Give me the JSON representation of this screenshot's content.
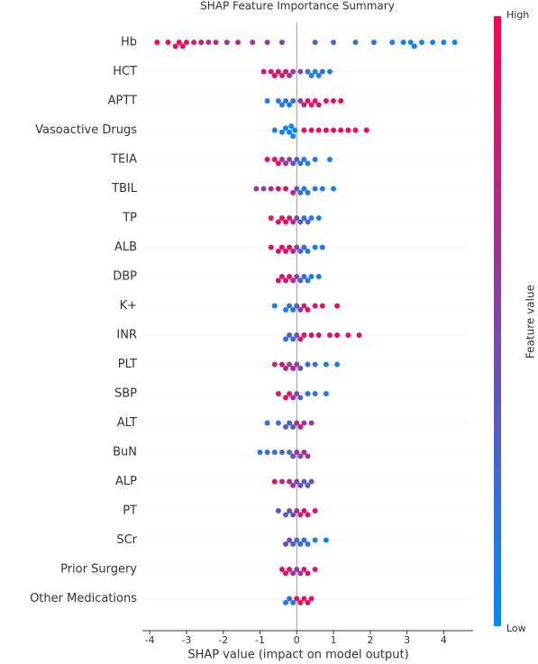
{
  "chart_data": {
    "type": "beeswarm",
    "title": "SHAP Feature Importance Summary",
    "xlabel": "SHAP value (impact on model output)",
    "xlim": [
      -4.2,
      4.8
    ],
    "xticks": [
      -4,
      -3,
      -2,
      -1,
      0,
      1,
      2,
      3,
      4
    ],
    "colorbar": {
      "label": "Feature value",
      "high": "High",
      "low": "Low",
      "colors": [
        "#008bfb",
        "#ff0052"
      ]
    },
    "features": [
      {
        "name": "Hb",
        "values": [
          -3.8,
          -3.5,
          -3.3,
          -3.2,
          -3.1,
          -3.0,
          -2.8,
          -2.6,
          -2.4,
          -2.2,
          -1.9,
          -1.6,
          -1.2,
          -0.8,
          -0.4,
          0.5,
          1.0,
          1.6,
          2.1,
          2.6,
          2.9,
          3.1,
          3.2,
          3.4,
          3.7,
          4.0,
          4.3
        ],
        "feature_values": [
          0.95,
          0.9,
          0.85,
          0.95,
          0.9,
          0.88,
          0.8,
          0.85,
          0.7,
          0.75,
          0.65,
          0.7,
          0.6,
          0.55,
          0.5,
          0.3,
          0.25,
          0.2,
          0.15,
          0.1,
          0.1,
          0.05,
          0.08,
          0.05,
          0.1,
          0.05,
          0.05
        ]
      },
      {
        "name": "HCT",
        "values": [
          -0.9,
          -0.7,
          -0.6,
          -0.5,
          -0.4,
          -0.3,
          -0.2,
          -0.1,
          0.1,
          0.3,
          0.4,
          0.5,
          0.6,
          0.7,
          0.9
        ],
        "feature_values": [
          0.9,
          0.85,
          0.95,
          0.9,
          0.8,
          0.85,
          0.7,
          0.6,
          0.4,
          0.2,
          0.15,
          0.1,
          0.1,
          0.2,
          0.1
        ]
      },
      {
        "name": "APTT",
        "values": [
          -0.8,
          -0.5,
          -0.4,
          -0.3,
          -0.2,
          -0.1,
          0.1,
          0.2,
          0.3,
          0.4,
          0.5,
          0.6,
          0.8,
          1.0,
          1.2
        ],
        "feature_values": [
          0.1,
          0.15,
          0.1,
          0.2,
          0.1,
          0.3,
          0.6,
          0.8,
          0.85,
          0.9,
          0.9,
          0.85,
          0.95,
          0.9,
          0.95
        ]
      },
      {
        "name": "Vasoactive Drugs",
        "values": [
          -0.6,
          -0.4,
          -0.3,
          -0.2,
          -0.15,
          -0.1,
          -0.05,
          0.2,
          0.4,
          0.6,
          0.8,
          1.0,
          1.2,
          1.4,
          1.6,
          1.9
        ],
        "feature_values": [
          0.05,
          0.05,
          0.05,
          0.05,
          0.05,
          0.05,
          0.05,
          0.95,
          0.95,
          0.95,
          0.95,
          0.95,
          0.95,
          0.95,
          0.95,
          0.95
        ]
      },
      {
        "name": "TEIA",
        "values": [
          -0.8,
          -0.6,
          -0.5,
          -0.4,
          -0.3,
          -0.2,
          -0.1,
          0,
          0.1,
          0.2,
          0.3,
          0.5,
          0.9
        ],
        "feature_values": [
          0.9,
          0.85,
          0.9,
          0.7,
          0.6,
          0.5,
          0.4,
          0.3,
          0.2,
          0.15,
          0.1,
          0.1,
          0.1
        ]
      },
      {
        "name": "TBIL",
        "values": [
          -1.1,
          -0.9,
          -0.7,
          -0.5,
          -0.3,
          -0.1,
          0,
          0.1,
          0.2,
          0.3,
          0.5,
          0.7,
          1.0
        ],
        "feature_values": [
          0.6,
          0.5,
          0.7,
          0.85,
          0.9,
          0.8,
          0.3,
          0.2,
          0.1,
          0.15,
          0.1,
          0.1,
          0.05
        ]
      },
      {
        "name": "TP",
        "values": [
          -0.7,
          -0.5,
          -0.4,
          -0.3,
          -0.2,
          -0.1,
          0,
          0.1,
          0.2,
          0.3,
          0.4,
          0.6
        ],
        "feature_values": [
          0.9,
          0.9,
          0.85,
          0.9,
          0.8,
          0.7,
          0.5,
          0.3,
          0.2,
          0.3,
          0.1,
          0.1
        ]
      },
      {
        "name": "ALB",
        "values": [
          -0.7,
          -0.5,
          -0.4,
          -0.3,
          -0.2,
          -0.1,
          0,
          0.1,
          0.2,
          0.3,
          0.5,
          0.7
        ],
        "feature_values": [
          0.9,
          0.85,
          0.9,
          0.95,
          0.9,
          0.7,
          0.5,
          0.3,
          0.2,
          0.15,
          0.1,
          0.1
        ]
      },
      {
        "name": "DBP",
        "values": [
          -0.5,
          -0.4,
          -0.3,
          -0.2,
          -0.1,
          0,
          0.1,
          0.2,
          0.3,
          0.4,
          0.6
        ],
        "feature_values": [
          0.9,
          0.8,
          0.9,
          0.85,
          0.7,
          0.5,
          0.3,
          0.2,
          0.15,
          0.1,
          0.1
        ]
      },
      {
        "name": "K+",
        "values": [
          -0.6,
          -0.3,
          -0.2,
          -0.1,
          0,
          0.1,
          0.2,
          0.3,
          0.5,
          0.7,
          1.1
        ],
        "feature_values": [
          0.1,
          0.1,
          0.2,
          0.15,
          0.3,
          0.6,
          0.8,
          0.85,
          0.9,
          0.85,
          0.9
        ]
      },
      {
        "name": "INR",
        "values": [
          -0.3,
          -0.2,
          -0.1,
          0,
          0.1,
          0.2,
          0.4,
          0.6,
          0.9,
          1.1,
          1.4,
          1.7
        ],
        "feature_values": [
          0.2,
          0.3,
          0.25,
          0.4,
          0.85,
          0.9,
          0.85,
          0.9,
          0.9,
          0.95,
          0.9,
          0.9
        ]
      },
      {
        "name": "PLT",
        "values": [
          -0.6,
          -0.4,
          -0.3,
          -0.2,
          -0.1,
          0,
          0.1,
          0.3,
          0.5,
          0.8,
          1.1
        ],
        "feature_values": [
          0.7,
          0.8,
          0.7,
          0.6,
          0.75,
          0.5,
          0.4,
          0.3,
          0.2,
          0.15,
          0.1
        ]
      },
      {
        "name": "SBP",
        "values": [
          -0.5,
          -0.3,
          -0.2,
          -0.1,
          0,
          0.1,
          0.3,
          0.5,
          0.8
        ],
        "feature_values": [
          0.85,
          0.9,
          0.8,
          0.7,
          0.5,
          0.3,
          0.2,
          0.1,
          0.1
        ]
      },
      {
        "name": "ALT",
        "values": [
          -0.8,
          -0.5,
          -0.3,
          -0.2,
          -0.1,
          0,
          0.1,
          0.2,
          0.4
        ],
        "feature_values": [
          0.2,
          0.2,
          0.3,
          0.25,
          0.3,
          0.7,
          0.8,
          0.6,
          0.5
        ]
      },
      {
        "name": "BuN",
        "values": [
          -1.0,
          -0.8,
          -0.6,
          -0.4,
          -0.2,
          -0.1,
          0,
          0.1,
          0.2,
          0.3
        ],
        "feature_values": [
          0.2,
          0.25,
          0.2,
          0.3,
          0.3,
          0.4,
          0.6,
          0.5,
          0.7,
          0.6
        ]
      },
      {
        "name": "ALP",
        "values": [
          -0.6,
          -0.4,
          -0.2,
          -0.1,
          0,
          0.1,
          0.2,
          0.3,
          0.4
        ],
        "feature_values": [
          0.9,
          0.7,
          0.8,
          0.6,
          0.5,
          0.4,
          0.3,
          0.35,
          0.4
        ]
      },
      {
        "name": "PT",
        "values": [
          -0.5,
          -0.3,
          -0.2,
          -0.1,
          0,
          0.1,
          0.2,
          0.3,
          0.5
        ],
        "feature_values": [
          0.4,
          0.3,
          0.35,
          0.5,
          0.6,
          0.8,
          0.85,
          0.9,
          0.85
        ]
      },
      {
        "name": "SCr",
        "values": [
          -0.3,
          -0.2,
          -0.1,
          0,
          0.1,
          0.2,
          0.3,
          0.5,
          0.8
        ],
        "feature_values": [
          0.5,
          0.4,
          0.3,
          0.3,
          0.2,
          0.2,
          0.15,
          0.1,
          0.1
        ]
      },
      {
        "name": "Prior Surgery",
        "values": [
          -0.4,
          -0.3,
          -0.2,
          -0.1,
          0,
          0.1,
          0.2,
          0.3,
          0.5
        ],
        "feature_values": [
          0.9,
          0.85,
          0.8,
          0.7,
          0.5,
          0.6,
          0.8,
          0.85,
          0.9
        ]
      },
      {
        "name": "Other Medications",
        "values": [
          -0.3,
          -0.2,
          -0.1,
          0,
          0.1,
          0.2,
          0.3,
          0.4
        ],
        "feature_values": [
          0.1,
          0.2,
          0.1,
          0.9,
          0.9,
          0.85,
          0.9,
          0.9
        ]
      }
    ]
  }
}
